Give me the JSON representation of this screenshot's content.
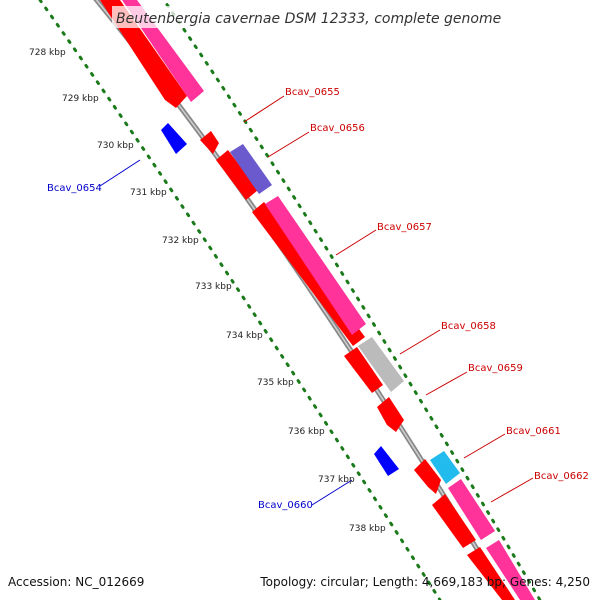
{
  "title": "Beutenbergia cavernae DSM 12333, complete genome",
  "footer": {
    "accession": "Accession: NC_012669",
    "summary": "Topology: circular; Length: 4,669,183 bp; Genes: 4,250"
  },
  "ticks": [
    "728 kbp",
    "729 kbp",
    "730 kbp",
    "731 kbp",
    "732 kbp",
    "733 kbp",
    "734 kbp",
    "735 kbp",
    "736 kbp",
    "737 kbp",
    "738 kbp"
  ],
  "genes": {
    "forward": [
      "Bcav_0655",
      "Bcav_0656",
      "Bcav_0657",
      "Bcav_0658",
      "Bcav_0659",
      "Bcav_0661",
      "Bcav_0662"
    ],
    "reverse": [
      "Bcav_0654",
      "Bcav_0660"
    ]
  },
  "colors": {
    "cds_forward": "#ff0000",
    "cds_reverse": "#0000ff",
    "feature_pink": "#ff3399",
    "feature_purple": "#6a5acd",
    "feature_grey": "#bbbbbb",
    "feature_cyan": "#22bbee",
    "backbone": "#888888",
    "tick_dots": "#1a7a1a",
    "label_forward": "#cc0000",
    "label_reverse": "#0000cc"
  }
}
